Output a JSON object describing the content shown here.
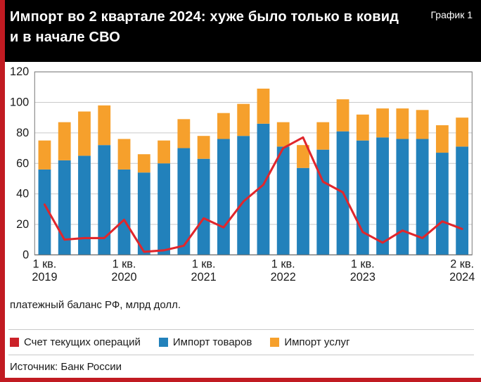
{
  "header": {
    "title_line1": "Импорт во 2 квартале 2024: хуже было только в ковид",
    "title_line2": "и в начале СВО",
    "chart_label": "График 1"
  },
  "caption": "платежный баланс РФ, млрд долл.",
  "source": "Источник: Банк России",
  "legend": [
    {
      "label": "Счет текущих операций",
      "color": "#cb2229"
    },
    {
      "label": "Импорт товаров",
      "color": "#2281bb"
    },
    {
      "label": "Импорт услуг",
      "color": "#f6a02c"
    }
  ],
  "colors": {
    "accent_red": "#c11b22",
    "header_bg": "#000000",
    "header_text": "#ffffff",
    "grid": "#c9c9c9",
    "axis_text": "#1a1a1a",
    "plot_frame": "#7a7a7a"
  },
  "chart_data": {
    "type": "bar",
    "title": "Импорт во 2 квартале 2024: хуже было только в ковид и в начале СВО",
    "subtitle": "платежный баланс РФ, млрд долл.",
    "xlabel": "",
    "ylabel": "млрд долл.",
    "ylim": [
      0,
      120
    ],
    "yticks": [
      0,
      20,
      40,
      60,
      80,
      100,
      120
    ],
    "grid": true,
    "legend_position": "bottom",
    "categories": [
      "1 кв. 2019",
      "2 кв. 2019",
      "3 кв. 2019",
      "4 кв. 2019",
      "1 кв. 2020",
      "2 кв. 2020",
      "3 кв. 2020",
      "4 кв. 2020",
      "1 кв. 2021",
      "2 кв. 2021",
      "3 кв. 2021",
      "4 кв. 2021",
      "1 кв. 2022",
      "2 кв. 2022",
      "3 кв. 2022",
      "4 кв. 2022",
      "1 кв. 2023",
      "2 кв. 2023",
      "3 кв. 2023",
      "4 кв. 2023",
      "1 кв. 2024",
      "2 кв. 2024"
    ],
    "x_ticks": [
      {
        "index": 0,
        "line1": "1 кв.",
        "line2": "2019"
      },
      {
        "index": 4,
        "line1": "1 кв.",
        "line2": "2020"
      },
      {
        "index": 8,
        "line1": "1 кв.",
        "line2": "2021"
      },
      {
        "index": 12,
        "line1": "1 кв.",
        "line2": "2022"
      },
      {
        "index": 16,
        "line1": "1 кв.",
        "line2": "2023"
      },
      {
        "index": 21,
        "line1": "2 кв.",
        "line2": "2024"
      }
    ],
    "series": [
      {
        "name": "Импорт товаров",
        "type": "bar",
        "color": "#2281bb",
        "values": [
          56,
          62,
          65,
          72,
          56,
          54,
          60,
          70,
          63,
          76,
          78,
          86,
          71,
          57,
          69,
          81,
          75,
          77,
          76,
          76,
          67,
          71
        ]
      },
      {
        "name": "Импорт услуг",
        "type": "bar",
        "color": "#f6a02c",
        "values": [
          19,
          25,
          29,
          26,
          20,
          12,
          15,
          19,
          15,
          17,
          21,
          23,
          16,
          15,
          18,
          21,
          17,
          19,
          20,
          19,
          18,
          19
        ]
      },
      {
        "name": "Счет текущих операций",
        "type": "line",
        "color": "#e0262c",
        "values": [
          33,
          10,
          11,
          11,
          23,
          2,
          3,
          6,
          24,
          18,
          35,
          46,
          70,
          77,
          48,
          41,
          15,
          8,
          16,
          11,
          22,
          17
        ]
      }
    ]
  }
}
